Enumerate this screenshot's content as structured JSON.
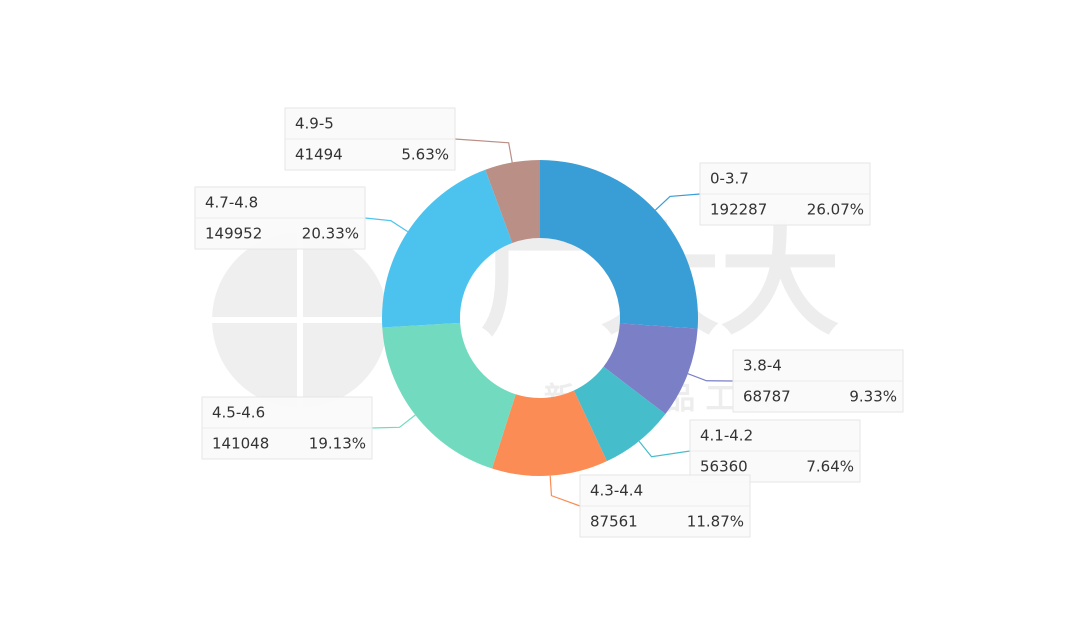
{
  "chart_data": {
    "type": "donut",
    "categories": [
      "0-3.7",
      "3.8-4",
      "4.1-4.2",
      "4.3-4.4",
      "4.5-4.6",
      "4.7-4.8",
      "4.9-5"
    ],
    "counts": [
      192287,
      68787,
      56360,
      87561,
      141048,
      149952,
      41494
    ],
    "values": [
      26.07,
      9.33,
      7.64,
      11.87,
      19.13,
      20.33,
      5.63
    ],
    "value_labels": [
      "26.07%",
      "9.33%",
      "7.64%",
      "11.87%",
      "19.13%",
      "20.33%",
      "5.63%"
    ],
    "colors": [
      "#3a9ed6",
      "#7a7fc6",
      "#46bdcb",
      "#fb8c55",
      "#72dbbf",
      "#4cc3ef",
      "#b98f86"
    ],
    "watermark": "广大大",
    "watermark_subtitle": "新 款 选 品 工 具"
  }
}
